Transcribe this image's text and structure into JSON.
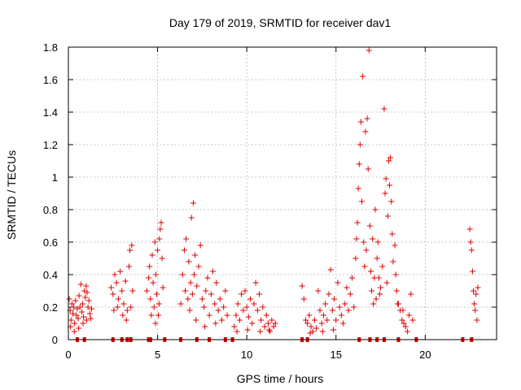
{
  "chart_data": {
    "type": "scatter",
    "title": "Day 179 of 2019, SRMTID for receiver dav1",
    "xlabel": "GPS time / hours",
    "ylabel": "SRMTID / TECUs",
    "xlim": [
      0,
      24
    ],
    "ylim": [
      0,
      1.8
    ],
    "xticks": [
      0,
      5,
      10,
      15,
      20
    ],
    "xtick_labels": [
      "0",
      "5",
      "10",
      "15",
      "20"
    ],
    "yticks": [
      0,
      0.2,
      0.4,
      0.6,
      0.8,
      1,
      1.2,
      1.4,
      1.6,
      1.8
    ],
    "ytick_labels": [
      "0",
      "0.2",
      "0.4",
      "0.6",
      "0.8",
      "1",
      "1.2",
      "1.4",
      "1.6",
      "1.8"
    ],
    "grid": true,
    "marker": "plus",
    "color": "#e00000",
    "series": [
      {
        "name": "SRMTID",
        "points": [
          [
            0.05,
            0.25
          ],
          [
            0.1,
            0.18
          ],
          [
            0.15,
            0.12
          ],
          [
            0.2,
            0.22
          ],
          [
            0.25,
            0.16
          ],
          [
            0.3,
            0.2
          ],
          [
            0.35,
            0.1
          ],
          [
            0.4,
            0.24
          ],
          [
            0.45,
            0.15
          ],
          [
            0.5,
            0.19
          ],
          [
            0.55,
            0.13
          ],
          [
            0.6,
            0.27
          ],
          [
            0.65,
            0.2
          ],
          [
            0.7,
            0.34
          ],
          [
            0.75,
            0.17
          ],
          [
            0.8,
            0.22
          ],
          [
            0.85,
            0.14
          ],
          [
            0.9,
            0.3
          ],
          [
            0.95,
            0.26
          ],
          [
            1.0,
            0.33
          ],
          [
            1.05,
            0.29
          ],
          [
            1.1,
            0.2
          ],
          [
            1.15,
            0.24
          ],
          [
            1.2,
            0.16
          ],
          [
            1.25,
            0.13
          ],
          [
            1.3,
            0.19
          ],
          [
            0.12,
            0.08
          ],
          [
            0.33,
            0.05
          ],
          [
            0.58,
            0.07
          ],
          [
            0.82,
            0.1
          ],
          [
            1.02,
            0.12
          ],
          [
            2.4,
            0.32
          ],
          [
            2.5,
            0.28
          ],
          [
            2.6,
            0.4
          ],
          [
            2.7,
            0.35
          ],
          [
            2.8,
            0.25
          ],
          [
            2.9,
            0.42
          ],
          [
            3.0,
            0.3
          ],
          [
            3.1,
            0.22
          ],
          [
            3.2,
            0.36
          ],
          [
            3.3,
            0.18
          ],
          [
            3.4,
            0.45
          ],
          [
            3.45,
            0.55
          ],
          [
            3.5,
            0.2
          ],
          [
            3.55,
            0.58
          ],
          [
            3.6,
            0.3
          ],
          [
            2.55,
            0.18
          ],
          [
            2.75,
            0.2
          ],
          [
            3.05,
            0.15
          ],
          [
            3.25,
            0.12
          ],
          [
            4.4,
            0.3
          ],
          [
            4.5,
            0.38
          ],
          [
            4.55,
            0.45
          ],
          [
            4.6,
            0.25
          ],
          [
            4.7,
            0.52
          ],
          [
            4.75,
            0.35
          ],
          [
            4.8,
            0.2
          ],
          [
            4.85,
            0.6
          ],
          [
            4.9,
            0.4
          ],
          [
            4.95,
            0.28
          ],
          [
            5.0,
            0.55
          ],
          [
            5.05,
            0.15
          ],
          [
            5.1,
            0.62
          ],
          [
            5.15,
            0.68
          ],
          [
            5.2,
            0.72
          ],
          [
            5.25,
            0.5
          ],
          [
            5.3,
            0.32
          ],
          [
            4.65,
            0.15
          ],
          [
            4.88,
            0.1
          ],
          [
            5.08,
            0.22
          ],
          [
            6.3,
            0.22
          ],
          [
            6.4,
            0.4
          ],
          [
            6.5,
            0.55
          ],
          [
            6.55,
            0.3
          ],
          [
            6.6,
            0.62
          ],
          [
            6.7,
            0.25
          ],
          [
            6.75,
            0.48
          ],
          [
            6.8,
            0.18
          ],
          [
            6.85,
            0.35
          ],
          [
            6.9,
            0.75
          ],
          [
            6.95,
            0.28
          ],
          [
            7.0,
            0.84
          ],
          [
            7.05,
            0.4
          ],
          [
            7.1,
            0.52
          ],
          [
            7.2,
            0.33
          ],
          [
            7.3,
            0.45
          ],
          [
            7.4,
            0.58
          ],
          [
            7.5,
            0.25
          ],
          [
            7.6,
            0.2
          ],
          [
            7.7,
            0.3
          ],
          [
            7.8,
            0.38
          ],
          [
            7.9,
            0.15
          ],
          [
            8.0,
            0.28
          ],
          [
            8.1,
            0.42
          ],
          [
            8.2,
            0.22
          ],
          [
            8.3,
            0.35
          ],
          [
            8.4,
            0.18
          ],
          [
            8.5,
            0.25
          ],
          [
            8.6,
            0.12
          ],
          [
            8.7,
            0.2
          ],
          [
            8.8,
            0.3
          ],
          [
            8.9,
            0.15
          ],
          [
            7.15,
            0.12
          ],
          [
            7.65,
            0.08
          ],
          [
            8.25,
            0.1
          ],
          [
            9.3,
            0.08
          ],
          [
            9.4,
            0.15
          ],
          [
            9.5,
            0.22
          ],
          [
            9.6,
            0.12
          ],
          [
            9.7,
            0.28
          ],
          [
            9.8,
            0.18
          ],
          [
            9.9,
            0.3
          ],
          [
            10.0,
            0.2
          ],
          [
            10.1,
            0.14
          ],
          [
            10.2,
            0.25
          ],
          [
            10.3,
            0.1
          ],
          [
            10.4,
            0.22
          ],
          [
            10.5,
            0.35
          ],
          [
            10.6,
            0.18
          ],
          [
            10.7,
            0.28
          ],
          [
            10.8,
            0.12
          ],
          [
            10.9,
            0.2
          ],
          [
            11.0,
            0.08
          ],
          [
            11.1,
            0.15
          ],
          [
            11.2,
            0.1
          ],
          [
            11.3,
            0.05
          ],
          [
            11.4,
            0.12
          ],
          [
            11.5,
            0.08
          ],
          [
            11.6,
            0.1
          ],
          [
            9.45,
            0.05
          ],
          [
            10.05,
            0.06
          ],
          [
            10.75,
            0.05
          ],
          [
            11.25,
            0.06
          ],
          [
            13.1,
            0.33
          ],
          [
            13.2,
            0.25
          ],
          [
            13.3,
            0.12
          ],
          [
            13.4,
            0.1
          ],
          [
            13.5,
            0.15
          ],
          [
            13.6,
            0.08
          ],
          [
            13.7,
            0.05
          ],
          [
            13.8,
            0.12
          ],
          [
            13.9,
            0.07
          ],
          [
            14.0,
            0.3
          ],
          [
            14.1,
            0.18
          ],
          [
            14.2,
            0.1
          ],
          [
            14.3,
            0.15
          ],
          [
            14.4,
            0.22
          ],
          [
            14.5,
            0.12
          ],
          [
            14.6,
            0.28
          ],
          [
            14.7,
            0.43
          ],
          [
            14.8,
            0.18
          ],
          [
            14.9,
            0.25
          ],
          [
            15.0,
            0.12
          ],
          [
            15.1,
            0.35
          ],
          [
            15.2,
            0.2
          ],
          [
            15.3,
            0.15
          ],
          [
            15.4,
            0.1
          ],
          [
            15.5,
            0.22
          ],
          [
            15.6,
            0.32
          ],
          [
            15.7,
            0.18
          ],
          [
            15.8,
            0.28
          ],
          [
            15.9,
            0.38
          ],
          [
            16.0,
            0.2
          ],
          [
            13.55,
            0.04
          ],
          [
            14.25,
            0.05
          ],
          [
            14.85,
            0.06
          ],
          [
            16.1,
            0.5
          ],
          [
            16.15,
            0.62
          ],
          [
            16.2,
            0.72
          ],
          [
            16.25,
            0.93
          ],
          [
            16.3,
            1.08
          ],
          [
            16.35,
            1.2
          ],
          [
            16.4,
            1.34
          ],
          [
            16.45,
            0.85
          ],
          [
            16.5,
            1.62
          ],
          [
            16.55,
            0.6
          ],
          [
            16.6,
            0.45
          ],
          [
            16.65,
            1.28
          ],
          [
            16.7,
            0.55
          ],
          [
            16.75,
            1.36
          ],
          [
            16.8,
            1.05
          ],
          [
            16.85,
            1.78
          ],
          [
            16.9,
            0.7
          ],
          [
            16.95,
            0.42
          ],
          [
            17.0,
            0.3
          ],
          [
            17.1,
            0.22
          ],
          [
            17.2,
            0.8
          ],
          [
            17.3,
            0.5
          ],
          [
            17.35,
            0.6
          ],
          [
            17.4,
            0.38
          ],
          [
            17.5,
            0.32
          ],
          [
            17.6,
            0.45
          ],
          [
            17.7,
            1.42
          ],
          [
            17.75,
            0.9
          ],
          [
            17.8,
            0.99
          ],
          [
            17.85,
            0.35
          ],
          [
            17.9,
            0.76
          ],
          [
            17.95,
            1.1
          ],
          [
            18.0,
            0.95
          ],
          [
            18.05,
            1.12
          ],
          [
            18.1,
            0.85
          ],
          [
            18.15,
            0.65
          ],
          [
            18.2,
            0.48
          ],
          [
            18.3,
            0.58
          ],
          [
            18.35,
            0.4
          ],
          [
            18.4,
            0.3
          ],
          [
            18.5,
            0.22
          ],
          [
            18.6,
            0.18
          ],
          [
            18.7,
            0.12
          ],
          [
            18.8,
            0.1
          ],
          [
            18.9,
            0.08
          ],
          [
            19.0,
            0.05
          ],
          [
            19.1,
            0.15
          ],
          [
            19.2,
            0.28
          ],
          [
            19.3,
            0.12
          ],
          [
            17.05,
            0.62
          ],
          [
            17.15,
            0.38
          ],
          [
            17.25,
            0.25
          ],
          [
            17.45,
            0.28
          ],
          [
            18.45,
            0.22
          ],
          [
            18.75,
            0.18
          ],
          [
            22.5,
            0.68
          ],
          [
            22.55,
            0.6
          ],
          [
            22.6,
            0.55
          ],
          [
            22.65,
            0.42
          ],
          [
            22.7,
            0.3
          ],
          [
            22.75,
            0.22
          ],
          [
            22.8,
            0.18
          ],
          [
            22.85,
            0.28
          ],
          [
            22.9,
            0.12
          ],
          [
            22.95,
            0.32
          ]
        ]
      },
      {
        "name": "zero-level markers",
        "points": [
          [
            0.5,
            0
          ],
          [
            0.9,
            0
          ],
          [
            2.5,
            0
          ],
          [
            3.0,
            0
          ],
          [
            3.3,
            0
          ],
          [
            3.5,
            0
          ],
          [
            4.5,
            0
          ],
          [
            4.6,
            0
          ],
          [
            5.4,
            0
          ],
          [
            6.3,
            0
          ],
          [
            7.2,
            0
          ],
          [
            7.9,
            0
          ],
          [
            8.8,
            0
          ],
          [
            9.2,
            0
          ],
          [
            13.1,
            0
          ],
          [
            13.4,
            0
          ],
          [
            16.3,
            0
          ],
          [
            16.9,
            0
          ],
          [
            17.3,
            0
          ],
          [
            17.7,
            0
          ],
          [
            18.5,
            0
          ],
          [
            19.5,
            0
          ],
          [
            22.1,
            0
          ],
          [
            22.6,
            0
          ]
        ]
      }
    ]
  }
}
